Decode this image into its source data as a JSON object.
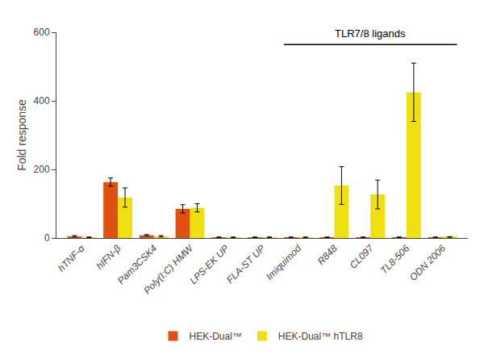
{
  "chart_data": {
    "type": "bar",
    "categories": [
      "hTNF-α",
      "hIFN-β",
      "Pam3CSK4",
      "Poly(I:C) HMW",
      "LPS-EK UP",
      "FLA-ST UP",
      "Imiquimod",
      "R848",
      "CL097",
      "TL8-506",
      "ODN 2006"
    ],
    "series": [
      {
        "name": "HEK-Dual™",
        "color": "#e05010",
        "values": [
          5,
          163,
          8,
          85,
          2,
          2,
          2,
          2,
          2,
          2,
          2
        ],
        "errors": [
          2,
          12,
          2,
          12,
          1,
          1,
          1,
          1,
          1,
          1,
          1
        ]
      },
      {
        "name": "HEK-Dual™ hTLR8",
        "color": "#f0e010",
        "values": [
          2,
          118,
          5,
          88,
          2,
          2,
          2,
          153,
          127,
          425,
          3
        ],
        "errors": [
          1,
          28,
          2,
          12,
          1,
          1,
          1,
          55,
          42,
          85,
          1
        ]
      }
    ],
    "ylabel": "Fold response",
    "ylim": [
      0,
      600
    ],
    "yticks": [
      0,
      200,
      400,
      600
    ],
    "grid": false,
    "legend": "bottom",
    "annotations": [
      {
        "text": "TLR7/8 ligands",
        "from": "Imiquimod",
        "to": "ODN 2006"
      }
    ]
  }
}
